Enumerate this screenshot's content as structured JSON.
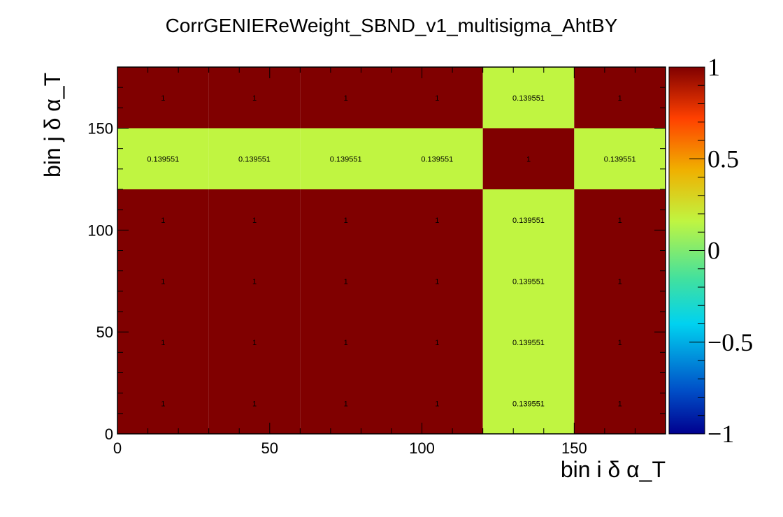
{
  "chart_data": {
    "type": "heatmap",
    "title": "CorrGENIEReWeight_SBND_v1_multisigma_AhtBY",
    "xlabel": "bin i δ α_T",
    "ylabel": "bin j δ α_T",
    "xlim": [
      0,
      180
    ],
    "ylim": [
      0,
      180
    ],
    "zlim": [
      -1,
      1
    ],
    "x_bin_edges": [
      0,
      30,
      60,
      90,
      120,
      150,
      180
    ],
    "y_bin_edges": [
      0,
      30,
      60,
      90,
      120,
      150,
      180
    ],
    "x_ticks": [
      "0",
      "50",
      "100",
      "150"
    ],
    "y_ticks": [
      "0",
      "50",
      "100",
      "150"
    ],
    "colorbar_ticks": [
      "−1",
      "−0.5",
      "0",
      "0.5",
      "1"
    ],
    "values": [
      [
        1,
        1,
        1,
        1,
        0.139551,
        1
      ],
      [
        1,
        1,
        1,
        1,
        0.139551,
        1
      ],
      [
        1,
        1,
        1,
        1,
        0.139551,
        1
      ],
      [
        1,
        1,
        1,
        1,
        0.139551,
        1
      ],
      [
        0.139551,
        0.139551,
        0.139551,
        0.139551,
        1,
        0.139551
      ],
      [
        1,
        1,
        1,
        1,
        0.139551,
        1
      ]
    ],
    "labels": [
      [
        "1",
        "1",
        "1",
        "1",
        "0.139551",
        "1"
      ],
      [
        "1",
        "1",
        "1",
        "1",
        "0.139551",
        "1"
      ],
      [
        "1",
        "1",
        "1",
        "1",
        "0.139551",
        "1"
      ],
      [
        "1",
        "1",
        "1",
        "1",
        "0.139551",
        "1"
      ],
      [
        "0.139551",
        "0.139551",
        "0.139551",
        "0.139551",
        "1",
        "0.139551"
      ],
      [
        "1",
        "1",
        "1",
        "1",
        "0.139551",
        "1"
      ]
    ],
    "colors": {
      "high": "#800000",
      "mid_low": "#c0f541"
    }
  }
}
